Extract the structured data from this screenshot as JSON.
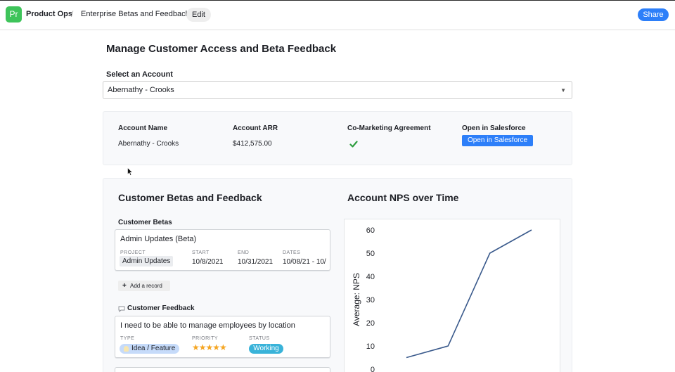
{
  "header": {
    "app_icon_text": "Pr",
    "app_name": "Product Ops",
    "separator": "/",
    "page_name": "Enterprise Betas and Feedback",
    "edit_label": "Edit",
    "share_label": "Share"
  },
  "page": {
    "title": "Manage Customer Access and Beta Feedback",
    "select_label": "Select an Account",
    "selected_account": "Abernathy - Crooks"
  },
  "account": {
    "name_label": "Account Name",
    "name_value": "Abernathy - Crooks",
    "arr_label": "Account ARR",
    "arr_value": "$412,575.00",
    "comarketing_label": "Co-Marketing Agreement",
    "comarketing_value": true,
    "salesforce_label": "Open in Salesforce",
    "salesforce_button": "Open in Salesforce"
  },
  "betas_section": {
    "title": "Customer Betas and Feedback",
    "betas_label": "Customer Betas",
    "beta_record": {
      "title": "Admin Updates (Beta)",
      "project_label": "PROJECT",
      "project_value": "Admin Updates",
      "start_label": "START",
      "start_value": "10/8/2021",
      "end_label": "END",
      "end_value": "10/31/2021",
      "dates_label": "DATES",
      "dates_value": "10/08/21 - 10/"
    },
    "add_record_label": "Add a record",
    "feedback_label": "Customer Feedback",
    "feedback_record": {
      "title": "I need to be able to manage employees by location",
      "type_label": "TYPE",
      "type_value": "Idea / Feature",
      "priority_label": "PRIORITY",
      "priority_stars": "★★★★★",
      "status_label": "STATUS",
      "status_value": "Working"
    }
  },
  "colors": {
    "accent": "#2d7ff9",
    "app_icon": "#3ec45a",
    "check": "#2e9e3f",
    "status_chip": "#39b3d9",
    "type_chip": "#c6dbfa",
    "stars": "#f5a623",
    "line": "#3a5a8c"
  },
  "icons": [
    "app-icon",
    "chevron-down-icon",
    "check-icon",
    "pointer-icon",
    "plus-icon",
    "speech-bubble-icon",
    "lightbulb-icon",
    "star-icon"
  ],
  "chart_data": {
    "type": "line",
    "title": "Account NPS over Time",
    "xlabel": "",
    "ylabel": "Average: NPS",
    "ylim": [
      0,
      60
    ],
    "yticks": [
      "0",
      "10",
      "20",
      "30",
      "40",
      "50",
      "60"
    ],
    "series": [
      {
        "values": [
          5,
          10,
          50,
          60
        ]
      }
    ],
    "grid": false
  }
}
